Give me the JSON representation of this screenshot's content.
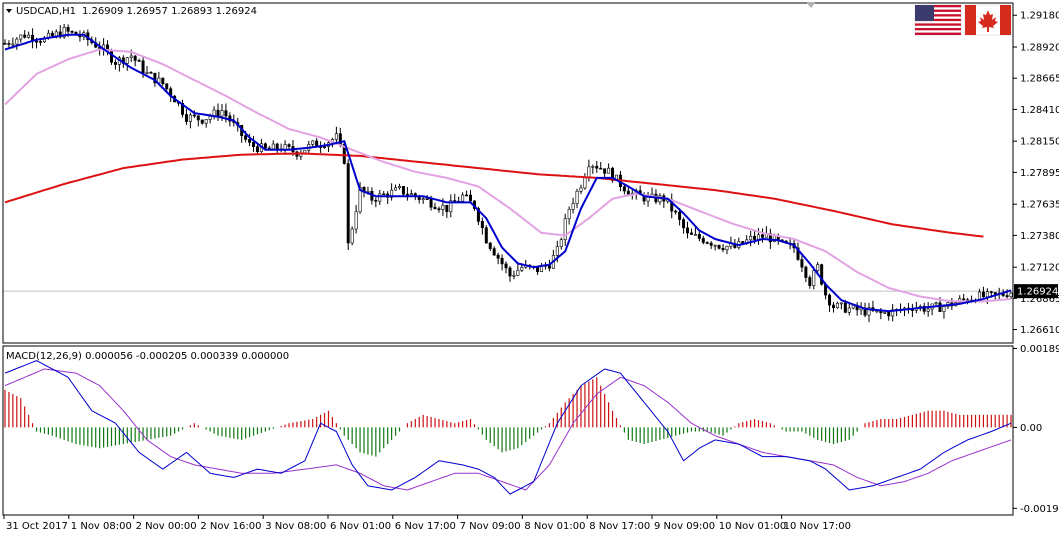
{
  "chart_data": [
    {
      "type": "candlestick",
      "symbol_label": "USDCAD,H1",
      "ohlc_label": "1.26909 1.26957 1.26893 1.26924",
      "last_price_label": "1.26924",
      "last_price": 1.26924,
      "ylim": [
        1.265,
        1.2928
      ],
      "y_ticks": [
        "1.29180",
        "1.28920",
        "1.28665",
        "1.28410",
        "1.28150",
        "1.27895",
        "1.27635",
        "1.27380",
        "1.27120",
        "1.26865",
        "1.26610"
      ],
      "x_ticks": [
        "31 Oct 2017",
        "1 Nov 08:00",
        "2 Nov 00:00",
        "2 Nov 16:00",
        "3 Nov 08:00",
        "6 Nov 01:00",
        "6 Nov 17:00",
        "7 Nov 09:00",
        "8 Nov 01:00",
        "8 Nov 17:00",
        "9 Nov 09:00",
        "10 Nov 01:00",
        "10 Nov 17:00"
      ],
      "close_path": [
        [
          0,
          1.2895
        ],
        [
          5,
          1.2902
        ],
        [
          10,
          1.2898
        ],
        [
          15,
          1.2905
        ],
        [
          20,
          1.29
        ],
        [
          25,
          1.289
        ],
        [
          28,
          1.288
        ],
        [
          32,
          1.2885
        ],
        [
          36,
          1.287
        ],
        [
          40,
          1.2862
        ],
        [
          43,
          1.285
        ],
        [
          46,
          1.2835
        ],
        [
          50,
          1.2833
        ],
        [
          55,
          1.284
        ],
        [
          58,
          1.2828
        ],
        [
          62,
          1.2812
        ],
        [
          66,
          1.2808
        ],
        [
          70,
          1.281
        ],
        [
          74,
          1.2806
        ],
        [
          78,
          1.2812
        ],
        [
          82,
          1.2815
        ],
        [
          84,
          1.2818
        ],
        [
          86,
          1.28
        ],
        [
          87,
          1.273
        ],
        [
          88,
          1.2745
        ],
        [
          90,
          1.2775
        ],
        [
          93,
          1.2768
        ],
        [
          97,
          1.2772
        ],
        [
          100,
          1.2775
        ],
        [
          104,
          1.277
        ],
        [
          108,
          1.2765
        ],
        [
          112,
          1.276
        ],
        [
          116,
          1.277
        ],
        [
          119,
          1.2762
        ],
        [
          122,
          1.2735
        ],
        [
          126,
          1.2715
        ],
        [
          128,
          1.2705
        ],
        [
          131,
          1.2712
        ],
        [
          135,
          1.271
        ],
        [
          138,
          1.2715
        ],
        [
          140,
          1.2725
        ],
        [
          143,
          1.276
        ],
        [
          146,
          1.278
        ],
        [
          148,
          1.2798
        ],
        [
          150,
          1.2795
        ],
        [
          153,
          1.279
        ],
        [
          156,
          1.278
        ],
        [
          159,
          1.2772
        ],
        [
          163,
          1.2768
        ],
        [
          167,
          1.2768
        ],
        [
          170,
          1.2755
        ],
        [
          173,
          1.2738
        ],
        [
          177,
          1.2735
        ],
        [
          181,
          1.273
        ],
        [
          185,
          1.2728
        ],
        [
          189,
          1.2735
        ],
        [
          193,
          1.2738
        ],
        [
          197,
          1.273
        ],
        [
          200,
          1.2728
        ],
        [
          202,
          1.2715
        ],
        [
          204,
          1.27
        ],
        [
          206,
          1.2712
        ],
        [
          208,
          1.269
        ],
        [
          210,
          1.268
        ],
        [
          214,
          1.2678
        ],
        [
          218,
          1.2676
        ],
        [
          222,
          1.2674
        ],
        [
          226,
          1.2676
        ],
        [
          230,
          1.268
        ],
        [
          234,
          1.2678
        ],
        [
          238,
          1.268
        ],
        [
          242,
          1.2684
        ],
        [
          246,
          1.2688
        ],
        [
          250,
          1.2688
        ],
        [
          253,
          1.269
        ],
        [
          255,
          1.2692
        ]
      ],
      "ma_fast_path": [
        [
          0,
          1.289
        ],
        [
          8,
          1.2898
        ],
        [
          16,
          1.2902
        ],
        [
          20,
          1.2902
        ],
        [
          26,
          1.2888
        ],
        [
          32,
          1.2875
        ],
        [
          38,
          1.2865
        ],
        [
          42,
          1.2852
        ],
        [
          48,
          1.2838
        ],
        [
          54,
          1.2835
        ],
        [
          58,
          1.2832
        ],
        [
          62,
          1.2818
        ],
        [
          66,
          1.2808
        ],
        [
          72,
          1.2808
        ],
        [
          78,
          1.281
        ],
        [
          82,
          1.2812
        ],
        [
          86,
          1.2815
        ],
        [
          88,
          1.2795
        ],
        [
          90,
          1.2775
        ],
        [
          94,
          1.277
        ],
        [
          100,
          1.277
        ],
        [
          106,
          1.277
        ],
        [
          112,
          1.2765
        ],
        [
          118,
          1.2765
        ],
        [
          122,
          1.2752
        ],
        [
          126,
          1.2728
        ],
        [
          130,
          1.2715
        ],
        [
          134,
          1.2712
        ],
        [
          138,
          1.2714
        ],
        [
          142,
          1.2725
        ],
        [
          146,
          1.276
        ],
        [
          150,
          1.2785
        ],
        [
          154,
          1.2785
        ],
        [
          158,
          1.2778
        ],
        [
          162,
          1.277
        ],
        [
          168,
          1.2768
        ],
        [
          172,
          1.2756
        ],
        [
          176,
          1.2742
        ],
        [
          180,
          1.2735
        ],
        [
          186,
          1.273
        ],
        [
          192,
          1.2735
        ],
        [
          196,
          1.2734
        ],
        [
          200,
          1.273
        ],
        [
          204,
          1.2715
        ],
        [
          208,
          1.2698
        ],
        [
          212,
          1.2685
        ],
        [
          218,
          1.2678
        ],
        [
          224,
          1.2676
        ],
        [
          230,
          1.2678
        ],
        [
          236,
          1.268
        ],
        [
          242,
          1.2682
        ],
        [
          248,
          1.2686
        ],
        [
          252,
          1.269
        ],
        [
          255,
          1.2693
        ]
      ],
      "ma_mid_path": [
        [
          0,
          1.2845
        ],
        [
          8,
          1.287
        ],
        [
          16,
          1.2882
        ],
        [
          24,
          1.289
        ],
        [
          32,
          1.2888
        ],
        [
          40,
          1.2878
        ],
        [
          48,
          1.2865
        ],
        [
          56,
          1.2852
        ],
        [
          64,
          1.2838
        ],
        [
          72,
          1.2825
        ],
        [
          80,
          1.2818
        ],
        [
          88,
          1.2808
        ],
        [
          96,
          1.2798
        ],
        [
          104,
          1.279
        ],
        [
          112,
          1.2785
        ],
        [
          120,
          1.2778
        ],
        [
          128,
          1.276
        ],
        [
          136,
          1.274
        ],
        [
          142,
          1.2738
        ],
        [
          148,
          1.2752
        ],
        [
          154,
          1.2768
        ],
        [
          160,
          1.2772
        ],
        [
          168,
          1.2768
        ],
        [
          176,
          1.2758
        ],
        [
          184,
          1.2748
        ],
        [
          192,
          1.274
        ],
        [
          200,
          1.2735
        ],
        [
          208,
          1.2725
        ],
        [
          216,
          1.2708
        ],
        [
          224,
          1.2695
        ],
        [
          232,
          1.2688
        ],
        [
          240,
          1.2684
        ],
        [
          248,
          1.2684
        ],
        [
          255,
          1.2686
        ]
      ],
      "ma_slow_path": [
        [
          0,
          1.2765
        ],
        [
          15,
          1.278
        ],
        [
          30,
          1.2793
        ],
        [
          45,
          1.28
        ],
        [
          60,
          1.2804
        ],
        [
          75,
          1.2805
        ],
        [
          90,
          1.2803
        ],
        [
          105,
          1.2798
        ],
        [
          120,
          1.2793
        ],
        [
          135,
          1.2788
        ],
        [
          150,
          1.2785
        ],
        [
          165,
          1.278
        ],
        [
          180,
          1.2775
        ],
        [
          195,
          1.2768
        ],
        [
          210,
          1.2758
        ],
        [
          225,
          1.2747
        ],
        [
          240,
          1.274
        ],
        [
          248,
          1.2737
        ]
      ]
    },
    {
      "type": "macd",
      "label": "MACD(12,26,9) 0.000056 -0.000205 0.000339 0.000000",
      "ylim": [
        -0.0021,
        0.00195
      ],
      "y_ticks": [
        "0.001891",
        "0.00",
        "-0.00194"
      ],
      "histogram_path": [
        [
          0,
          0.0009
        ],
        [
          4,
          0.0007
        ],
        [
          8,
          -0.0001
        ],
        [
          12,
          -0.0002
        ],
        [
          18,
          -0.0004
        ],
        [
          24,
          -0.0005
        ],
        [
          30,
          -0.0004
        ],
        [
          36,
          -0.0003
        ],
        [
          42,
          -0.0002
        ],
        [
          48,
          0.0001
        ],
        [
          54,
          -0.0002
        ],
        [
          60,
          -0.0003
        ],
        [
          66,
          -0.0001
        ],
        [
          72,
          0.0001
        ],
        [
          78,
          0.0002
        ],
        [
          82,
          0.0004
        ],
        [
          86,
          -0.0002
        ],
        [
          90,
          -0.0006
        ],
        [
          94,
          -0.0007
        ],
        [
          98,
          -0.0003
        ],
        [
          102,
          0.0001
        ],
        [
          106,
          0.0003
        ],
        [
          110,
          0.0002
        ],
        [
          114,
          0.0001
        ],
        [
          118,
          0.0002
        ],
        [
          122,
          -0.0003
        ],
        [
          126,
          -0.0006
        ],
        [
          130,
          -0.0005
        ],
        [
          134,
          -0.0002
        ],
        [
          138,
          0.0001
        ],
        [
          142,
          0.0006
        ],
        [
          146,
          0.001
        ],
        [
          150,
          0.0012
        ],
        [
          154,
          0.0004
        ],
        [
          158,
          -0.0003
        ],
        [
          162,
          -0.0004
        ],
        [
          166,
          -0.0003
        ],
        [
          170,
          -0.0002
        ],
        [
          174,
          -0.0001
        ],
        [
          178,
          -0.0001
        ],
        [
          182,
          -0.0002
        ],
        [
          186,
          0.0001
        ],
        [
          190,
          0.0002
        ],
        [
          194,
          0.0001
        ],
        [
          198,
          -0.0001
        ],
        [
          202,
          -0.0001
        ],
        [
          206,
          -0.0003
        ],
        [
          210,
          -0.0004
        ],
        [
          214,
          -0.0003
        ],
        [
          218,
          0.0001
        ],
        [
          222,
          0.0002
        ],
        [
          226,
          0.0002
        ],
        [
          230,
          0.0003
        ],
        [
          234,
          0.0004
        ],
        [
          238,
          0.0004
        ],
        [
          242,
          0.0003
        ],
        [
          246,
          0.0003
        ],
        [
          250,
          0.0003
        ],
        [
          255,
          0.0003
        ]
      ],
      "macd_path": [
        [
          0,
          0.0013
        ],
        [
          8,
          0.0016
        ],
        [
          16,
          0.0012
        ],
        [
          22,
          0.0004
        ],
        [
          28,
          0.0001
        ],
        [
          34,
          -0.0006
        ],
        [
          40,
          -0.001
        ],
        [
          46,
          -0.0006
        ],
        [
          52,
          -0.0011
        ],
        [
          58,
          -0.0012
        ],
        [
          64,
          -0.001
        ],
        [
          70,
          -0.0011
        ],
        [
          76,
          -0.0008
        ],
        [
          80,
          0.0001
        ],
        [
          84,
          -0.0001
        ],
        [
          88,
          -0.0009
        ],
        [
          92,
          -0.0014
        ],
        [
          98,
          -0.0015
        ],
        [
          104,
          -0.0012
        ],
        [
          110,
          -0.0008
        ],
        [
          116,
          -0.0009
        ],
        [
          120,
          -0.001
        ],
        [
          124,
          -0.0012
        ],
        [
          128,
          -0.0016
        ],
        [
          134,
          -0.0013
        ],
        [
          140,
          0.0001
        ],
        [
          146,
          0.001
        ],
        [
          152,
          0.0014
        ],
        [
          156,
          0.0013
        ],
        [
          162,
          0.0006
        ],
        [
          168,
          -0.0001
        ],
        [
          172,
          -0.0008
        ],
        [
          176,
          -0.0005
        ],
        [
          180,
          -0.0003
        ],
        [
          186,
          -0.0004
        ],
        [
          192,
          -0.0007
        ],
        [
          198,
          -0.0007
        ],
        [
          204,
          -0.0008
        ],
        [
          208,
          -0.001
        ],
        [
          214,
          -0.0015
        ],
        [
          220,
          -0.0014
        ],
        [
          226,
          -0.0012
        ],
        [
          232,
          -0.001
        ],
        [
          238,
          -0.0006
        ],
        [
          244,
          -0.0003
        ],
        [
          250,
          -0.0001
        ],
        [
          255,
          0.0001
        ]
      ],
      "signal_path": [
        [
          0,
          0.001
        ],
        [
          10,
          0.0014
        ],
        [
          18,
          0.0013
        ],
        [
          24,
          0.001
        ],
        [
          30,
          0.0004
        ],
        [
          36,
          -0.0003
        ],
        [
          42,
          -0.0007
        ],
        [
          48,
          -0.0009
        ],
        [
          54,
          -0.001
        ],
        [
          60,
          -0.0011
        ],
        [
          68,
          -0.0011
        ],
        [
          76,
          -0.001
        ],
        [
          84,
          -0.0009
        ],
        [
          90,
          -0.0011
        ],
        [
          96,
          -0.0014
        ],
        [
          102,
          -0.0015
        ],
        [
          108,
          -0.0013
        ],
        [
          114,
          -0.0011
        ],
        [
          120,
          -0.0011
        ],
        [
          126,
          -0.0013
        ],
        [
          132,
          -0.0015
        ],
        [
          138,
          -0.0009
        ],
        [
          144,
          0.0001
        ],
        [
          150,
          0.0008
        ],
        [
          156,
          0.0012
        ],
        [
          162,
          0.001
        ],
        [
          168,
          0.0006
        ],
        [
          174,
          0.0001
        ],
        [
          180,
          -0.0002
        ],
        [
          186,
          -0.0004
        ],
        [
          192,
          -0.0006
        ],
        [
          198,
          -0.0007
        ],
        [
          204,
          -0.0008
        ],
        [
          210,
          -0.0009
        ],
        [
          216,
          -0.0012
        ],
        [
          222,
          -0.0014
        ],
        [
          228,
          -0.0013
        ],
        [
          234,
          -0.0011
        ],
        [
          240,
          -0.0008
        ],
        [
          246,
          -0.0006
        ],
        [
          252,
          -0.0004
        ],
        [
          255,
          -0.0003
        ]
      ]
    }
  ],
  "colors": {
    "candle": "#000000",
    "ma_fast": "#0000cc",
    "ma_mid": "#e3a2e3",
    "ma_slow": "#dd1111",
    "hist_positive": "#cc1111",
    "hist_negative": "#117711",
    "macd_line": "#0000cc",
    "signal_line": "#9933cc",
    "price_line": "#c0c0c0",
    "last_price_bg": "#000000",
    "last_price_fg": "#ffffff"
  },
  "icons": [
    "us-flag-icon",
    "canada-flag-icon",
    "dropdown-triangle-icon"
  ]
}
